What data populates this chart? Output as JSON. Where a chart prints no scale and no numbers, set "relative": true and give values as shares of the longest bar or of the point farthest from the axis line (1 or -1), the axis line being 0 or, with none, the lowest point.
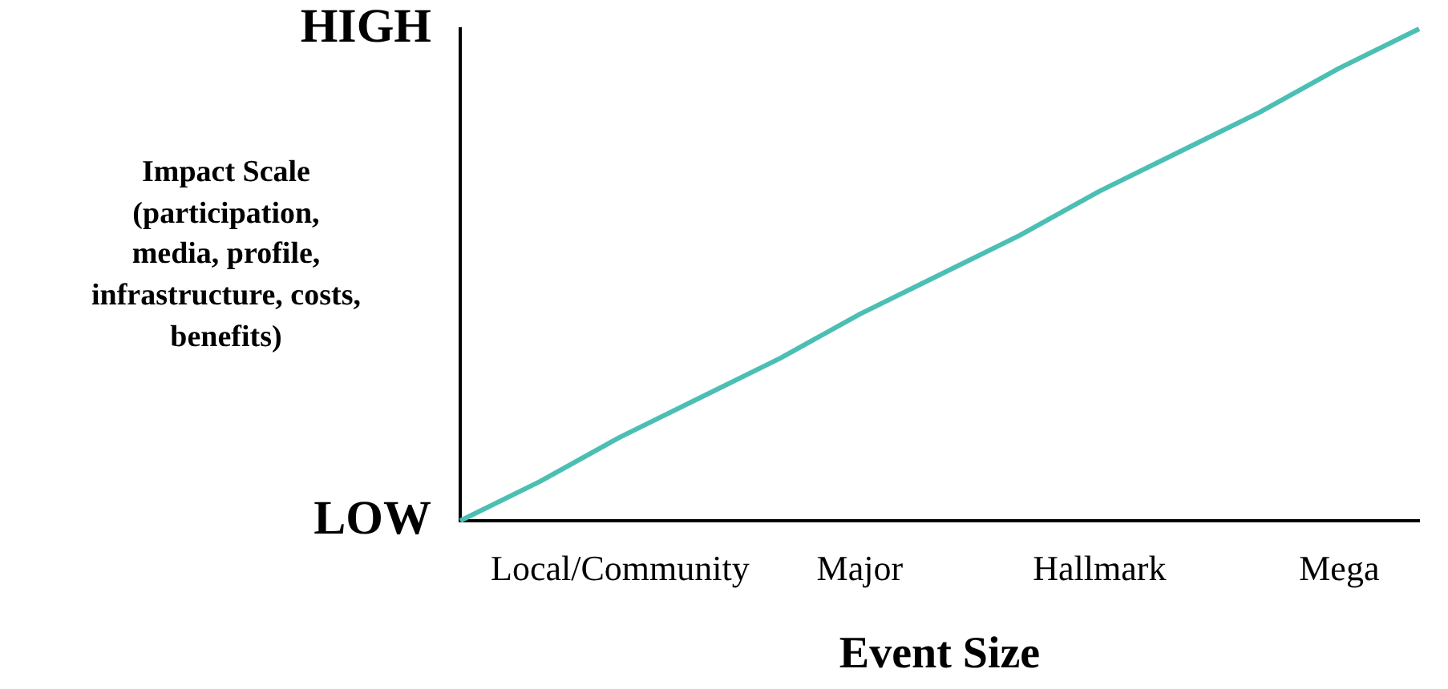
{
  "chart_data": {
    "type": "line",
    "relative": true,
    "xlabel": "Event Size",
    "ylabel": "Impact Scale\n(participation,\nmedia, profile,\ninfrastructure, costs,\nbenefits)",
    "categories": [
      null,
      null,
      "Local/Community",
      null,
      null,
      "Major",
      null,
      null,
      "Hallmark",
      null,
      null,
      "Mega",
      null
    ],
    "series": [
      {
        "color": "#4cbfb4",
        "values": [
          0,
          0.08,
          0.17,
          0.25,
          0.33,
          0.42,
          0.5,
          0.58,
          0.67,
          0.75,
          0.83,
          0.92,
          1
        ]
      }
    ],
    "annotations": [
      "LOW",
      "HIGH"
    ],
    "grid": false,
    "legend": false,
    "marker": "none",
    "line_style": "solid"
  }
}
